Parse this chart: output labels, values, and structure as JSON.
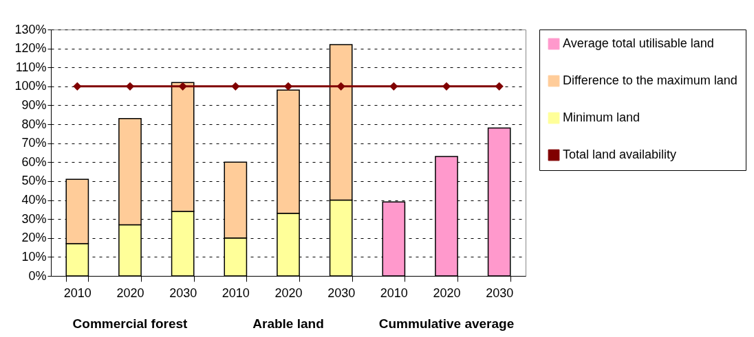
{
  "chart_data": {
    "type": "bar",
    "stacked": true,
    "categories": [
      "2010",
      "2020",
      "2030",
      "2010",
      "2020",
      "2030",
      "2010",
      "2020",
      "2030"
    ],
    "series": [
      {
        "name": "Minimum land",
        "color": "#ffff99",
        "values": [
          17,
          27,
          34,
          20,
          33,
          40,
          null,
          null,
          null
        ]
      },
      {
        "name": "Difference to the maximum land",
        "color": "#ffcc99",
        "values": [
          34,
          56,
          68,
          40,
          65,
          82,
          null,
          null,
          null
        ]
      },
      {
        "name": "Average total utilisable land",
        "color": "#ff99cc",
        "values": [
          null,
          null,
          null,
          null,
          null,
          null,
          39,
          63,
          78
        ]
      },
      {
        "name": "Total land availability",
        "type": "line",
        "color": "#800000",
        "marker": "diamond",
        "values": [
          100,
          100,
          100,
          100,
          100,
          100,
          100,
          100,
          100
        ]
      }
    ],
    "ylim": [
      0,
      130
    ],
    "yticks": [
      {
        "value": 0,
        "label": "0%"
      },
      {
        "value": 10,
        "label": "10%"
      },
      {
        "value": 20,
        "label": "20%"
      },
      {
        "value": 30,
        "label": "30%"
      },
      {
        "value": 40,
        "label": "40%"
      },
      {
        "value": 50,
        "label": "50%"
      },
      {
        "value": 60,
        "label": "60%"
      },
      {
        "value": 70,
        "label": "70%"
      },
      {
        "value": 80,
        "label": "80%"
      },
      {
        "value": 90,
        "label": "90%"
      },
      {
        "value": 100,
        "label": "100%"
      },
      {
        "value": 110,
        "label": "110%"
      },
      {
        "value": 120,
        "label": "120%"
      },
      {
        "value": 130,
        "label": "130%"
      }
    ],
    "annotations": [
      "Commercial forest",
      "Arable land",
      "Cummulative average"
    ],
    "grid": "y",
    "legend": "right"
  }
}
